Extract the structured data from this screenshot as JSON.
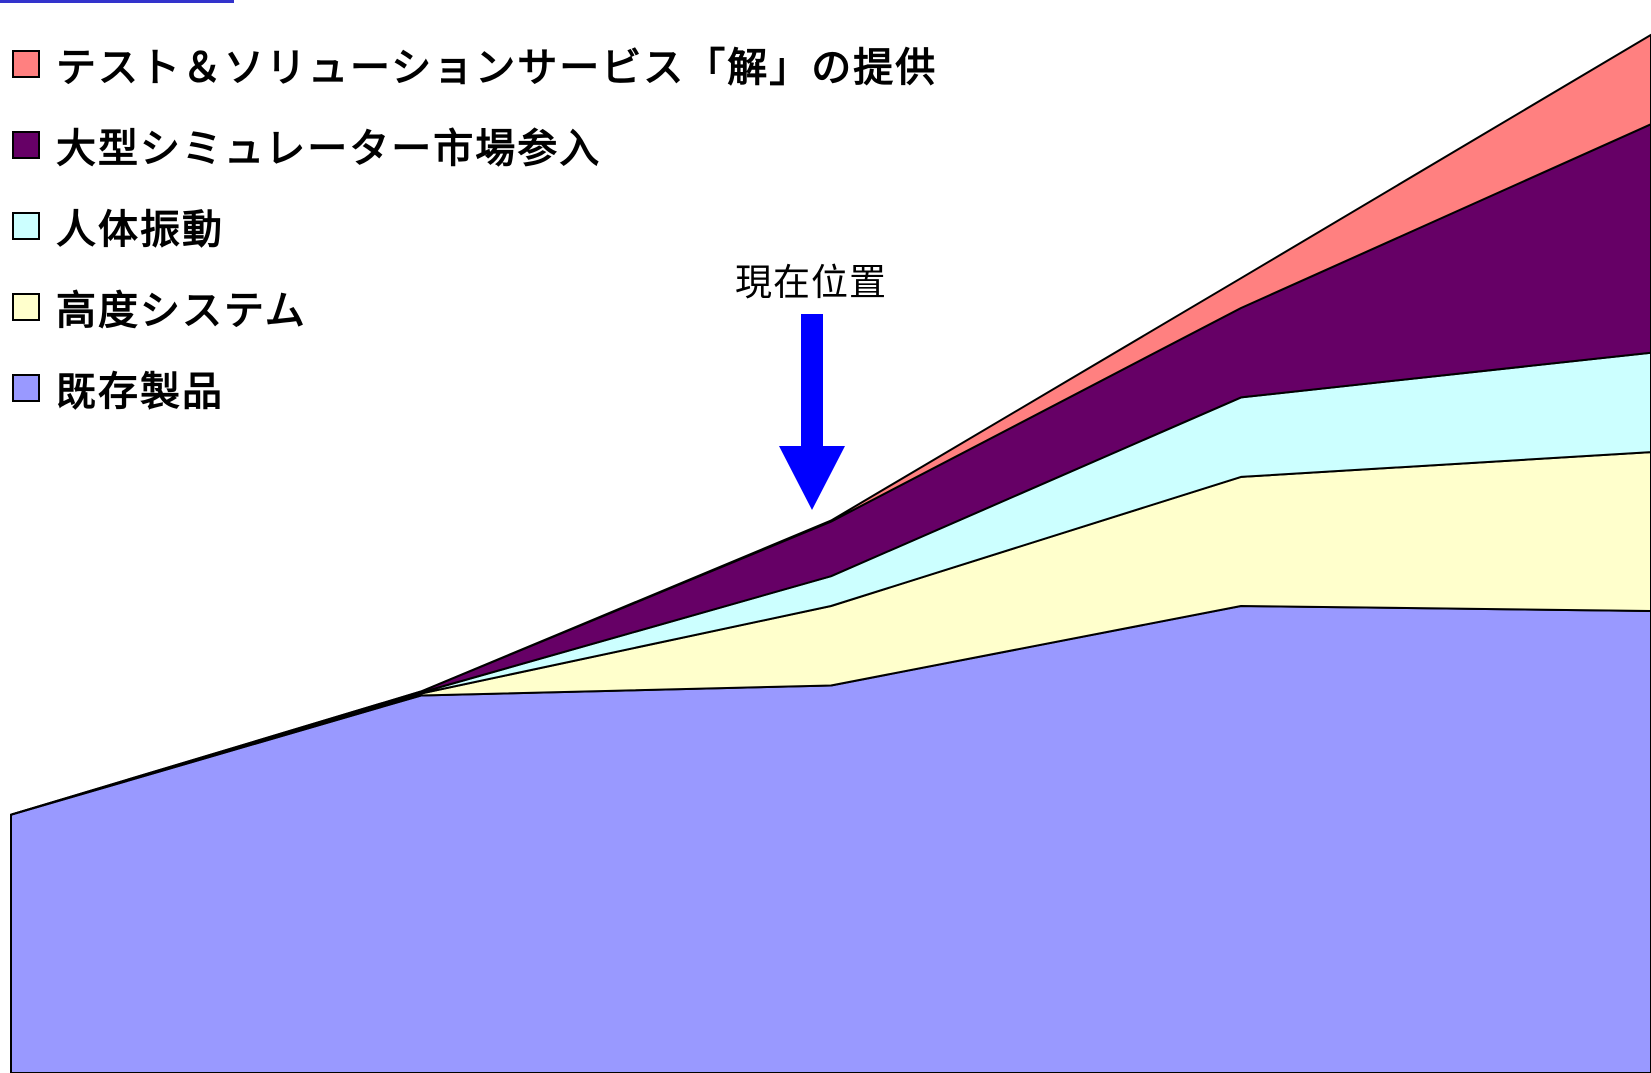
{
  "chart_data": {
    "type": "area",
    "stacked": true,
    "x": [
      1,
      2,
      3,
      4,
      5
    ],
    "series": [
      {
        "name": "既存製品",
        "color": "#9999ff",
        "values": [
          26,
          38,
          39,
          47,
          46.5
        ]
      },
      {
        "name": "高度システム",
        "color": "#ffffcc",
        "values": [
          0,
          0.2,
          8,
          13,
          16
        ]
      },
      {
        "name": "人体振動",
        "color": "#ccffff",
        "values": [
          0,
          0.1,
          3,
          8,
          10
        ]
      },
      {
        "name": "大型シミュレーター市場参入",
        "color": "#660066",
        "values": [
          0,
          0.1,
          5.5,
          9,
          23
        ]
      },
      {
        "name": "テスト＆ソリューションサービス「解」の提供",
        "color": "#ff8080",
        "values": [
          0,
          0,
          0.1,
          3,
          9
        ]
      }
    ],
    "ylim": [
      0,
      108
    ],
    "grid": false,
    "legend_position": "top-left",
    "annotation": {
      "text": "現在位置",
      "x": 3,
      "arrow_color": "#0000ff"
    }
  }
}
